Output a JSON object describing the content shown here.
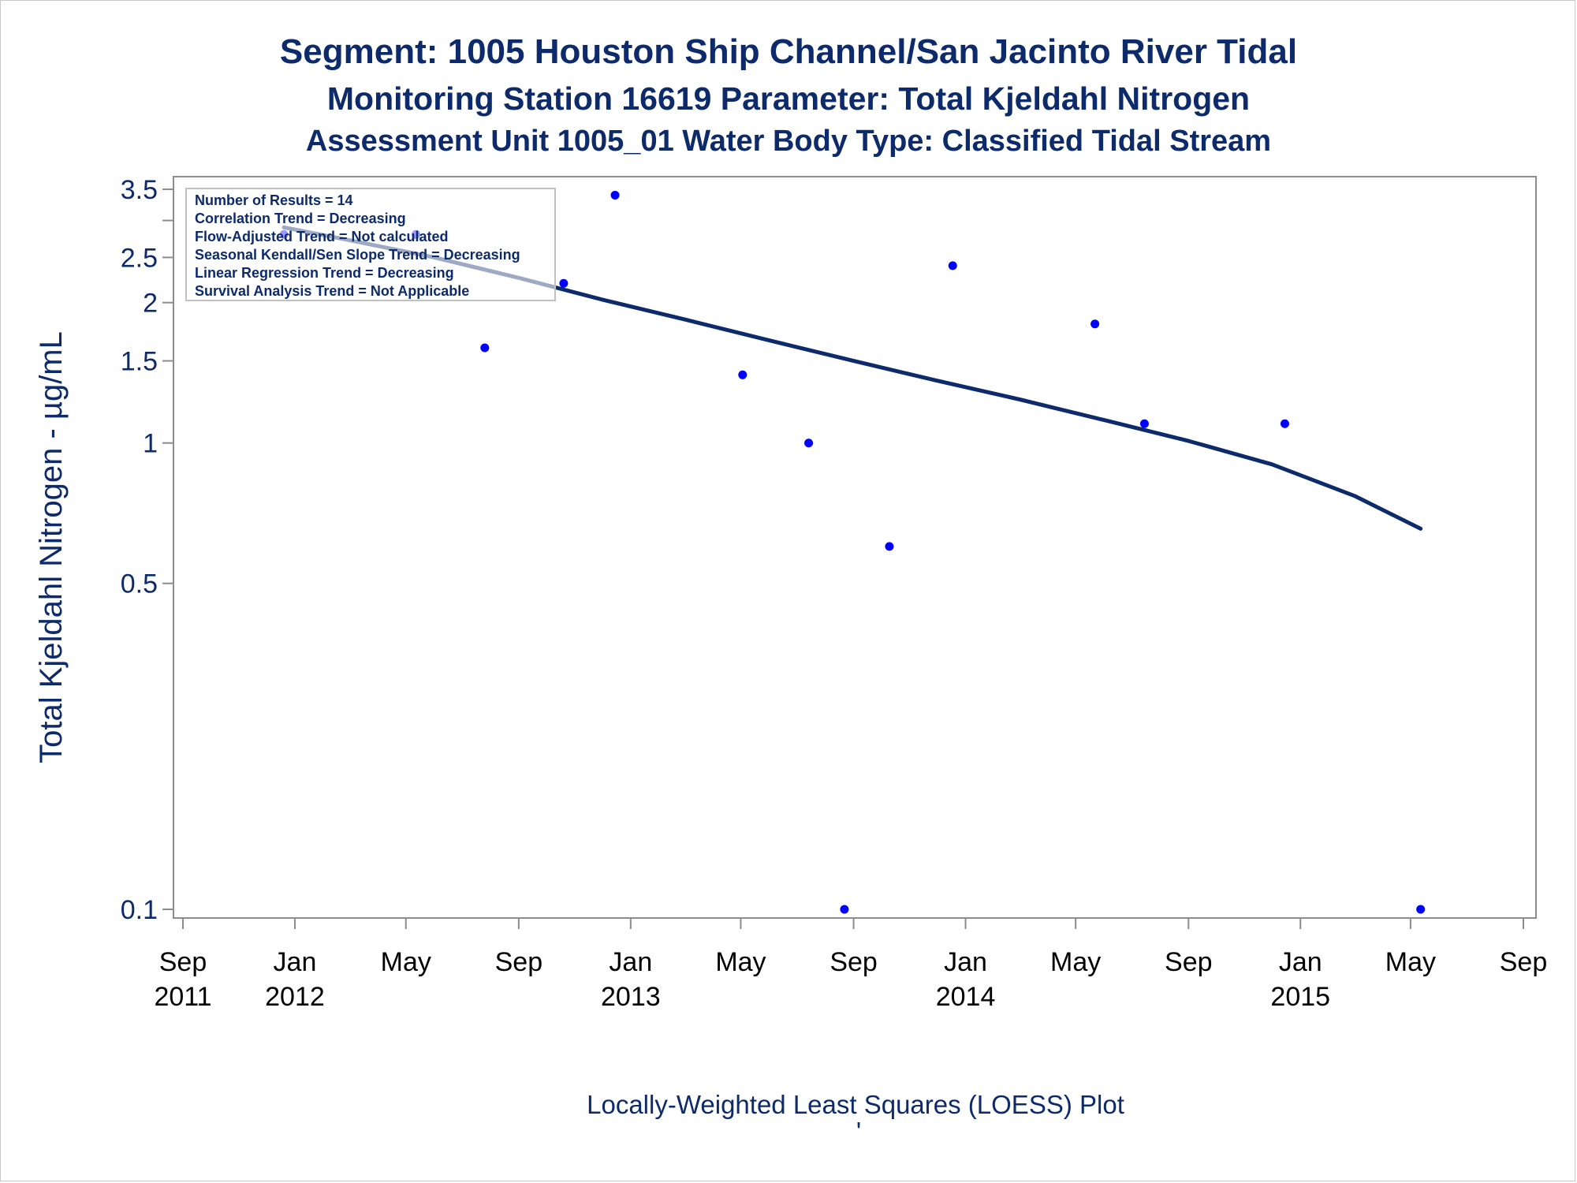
{
  "title": "Segment: 1005  Houston Ship Channel/San Jacinto River Tidal",
  "subtitle1": "Monitoring Station 16619 Parameter: Total Kjeldahl Nitrogen",
  "subtitle2": "Assessment Unit 1005_01   Water Body Type: Classified Tidal Stream",
  "footnote": "Locally-Weighted Least Squares (LOESS) Plot",
  "footnote_mark": "'",
  "inset_lines": [
    "Number of Results = 14",
    "Correlation Trend = Decreasing",
    "Flow-Adjusted Trend = Not calculated",
    "Seasonal Kendall/Sen Slope Trend = Decreasing",
    "Linear Regression Trend = Decreasing",
    "Survival Analysis Trend = Not Applicable"
  ],
  "colors": {
    "text": "#0d2a6b",
    "points": "#0000ff",
    "loess": "#0d2a6b",
    "axis": "#8c8c8c"
  },
  "chart_data": {
    "type": "scatter",
    "ylabel": "Total Kjeldahl Nitrogen -  µg/mL",
    "yscale": "log",
    "ylim": [
      0.095,
      3.6
    ],
    "yticks": [
      0.1,
      0.5,
      1,
      1.5,
      2,
      2.5,
      3.5
    ],
    "ytick_labels": [
      "0.1",
      "0.5",
      "1",
      "1.5",
      "2",
      "2.5",
      "3.5"
    ],
    "y_minor_ticks": [
      3
    ],
    "xlim": [
      "2011-09-01",
      "2015-09-01"
    ],
    "xticks": [
      {
        "date": "2011-09-01",
        "month": "Sep",
        "year": "2011"
      },
      {
        "date": "2012-01-01",
        "month": "Jan",
        "year": "2012"
      },
      {
        "date": "2012-05-01",
        "month": "May",
        "year": ""
      },
      {
        "date": "2012-09-01",
        "month": "Sep",
        "year": ""
      },
      {
        "date": "2013-01-01",
        "month": "Jan",
        "year": "2013"
      },
      {
        "date": "2013-05-01",
        "month": "May",
        "year": ""
      },
      {
        "date": "2013-09-01",
        "month": "Sep",
        "year": ""
      },
      {
        "date": "2014-01-01",
        "month": "Jan",
        "year": "2014"
      },
      {
        "date": "2014-05-01",
        "month": "May",
        "year": ""
      },
      {
        "date": "2014-09-01",
        "month": "Sep",
        "year": ""
      },
      {
        "date": "2015-01-01",
        "month": "Jan",
        "year": "2015"
      },
      {
        "date": "2015-05-01",
        "month": "May",
        "year": ""
      },
      {
        "date": "2015-09-01",
        "month": "Sep",
        "year": ""
      }
    ],
    "points": [
      {
        "x": "2011-12-20",
        "y": 2.8
      },
      {
        "x": "2012-05-12",
        "y": 2.8
      },
      {
        "x": "2012-07-26",
        "y": 1.6
      },
      {
        "x": "2012-10-20",
        "y": 2.2
      },
      {
        "x": "2012-12-15",
        "y": 3.4
      },
      {
        "x": "2013-05-03",
        "y": 1.4
      },
      {
        "x": "2013-07-14",
        "y": 1.0
      },
      {
        "x": "2013-08-22",
        "y": 0.1
      },
      {
        "x": "2013-10-10",
        "y": 0.6
      },
      {
        "x": "2013-12-18",
        "y": 2.4
      },
      {
        "x": "2014-05-22",
        "y": 1.8
      },
      {
        "x": "2014-07-15",
        "y": 1.1
      },
      {
        "x": "2014-12-15",
        "y": 1.1
      },
      {
        "x": "2015-05-12",
        "y": 0.1
      }
    ],
    "loess": [
      {
        "x": "2011-12-20",
        "y": 2.9
      },
      {
        "x": "2012-03-01",
        "y": 2.72
      },
      {
        "x": "2012-06-01",
        "y": 2.5
      },
      {
        "x": "2012-09-01",
        "y": 2.26
      },
      {
        "x": "2012-12-01",
        "y": 2.03
      },
      {
        "x": "2013-03-01",
        "y": 1.84
      },
      {
        "x": "2013-06-01",
        "y": 1.66
      },
      {
        "x": "2013-09-01",
        "y": 1.5
      },
      {
        "x": "2013-12-01",
        "y": 1.36
      },
      {
        "x": "2014-03-01",
        "y": 1.24
      },
      {
        "x": "2014-06-01",
        "y": 1.12
      },
      {
        "x": "2014-09-01",
        "y": 1.01
      },
      {
        "x": "2014-12-01",
        "y": 0.9
      },
      {
        "x": "2015-03-01",
        "y": 0.77
      },
      {
        "x": "2015-05-12",
        "y": 0.655
      }
    ]
  }
}
